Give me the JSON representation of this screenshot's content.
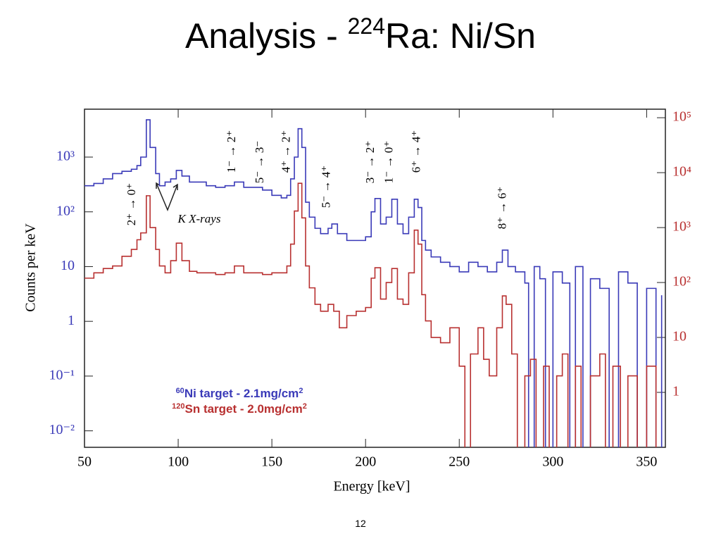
{
  "chart_data": {
    "type": "line",
    "title": {
      "text": "Analysis - ",
      "superscript": "224",
      "rest": "Ra: Ni/Sn"
    },
    "x_label": "Energy [keV]",
    "y_label": "Counts per keV",
    "log_y": true,
    "xlim": [
      50,
      360
    ],
    "xticks": [
      50,
      100,
      150,
      200,
      250,
      300,
      350
    ],
    "ylim": [
      0.005,
      7500
    ],
    "yticks": [
      {
        "value": 0.01,
        "label": "10⁻²"
      },
      {
        "value": 0.1,
        "label": "10⁻¹"
      },
      1,
      10,
      {
        "value": 100,
        "label": "10²"
      },
      {
        "value": 1000,
        "label": "10³"
      }
    ],
    "y2lim": [
      0.1,
      143000
    ],
    "y2ticks": [
      1,
      10,
      {
        "value": 100,
        "label": "10²"
      },
      {
        "value": 1000,
        "label": "10³"
      },
      {
        "value": 10000,
        "label": "10⁴"
      },
      {
        "value": 100000,
        "label": "10⁵"
      }
    ],
    "series": [
      {
        "name_sup": "60",
        "name": "Ni target - 2.1mg/cm",
        "name_unit_sup": "2",
        "color": "#3a3ab8",
        "axis": "y",
        "x": [
          50,
          55,
          60,
          65,
          70,
          75,
          78,
          80,
          83,
          85,
          88,
          90,
          93,
          96,
          99,
          102,
          106,
          110,
          115,
          120,
          125,
          130,
          135,
          140,
          145,
          150,
          155,
          158,
          160,
          162,
          164,
          166,
          168,
          170,
          173,
          176,
          180,
          182,
          185,
          190,
          195,
          200,
          203,
          205,
          208,
          211,
          214,
          217,
          220,
          223,
          226,
          228,
          230,
          232,
          235,
          240,
          245,
          250,
          255,
          260,
          265,
          270,
          273,
          276,
          280,
          285,
          287,
          290,
          293,
          296,
          300,
          305,
          309,
          312,
          316,
          320,
          325,
          330,
          335,
          340,
          345,
          350,
          355,
          358
        ],
        "values": [
          300,
          330,
          400,
          500,
          550,
          600,
          700,
          1000,
          4800,
          1500,
          500,
          300,
          350,
          400,
          570,
          450,
          350,
          350,
          300,
          280,
          300,
          350,
          280,
          280,
          250,
          200,
          180,
          200,
          400,
          1000,
          3300,
          1500,
          150,
          80,
          50,
          40,
          50,
          60,
          40,
          30,
          30,
          35,
          100,
          175,
          60,
          80,
          170,
          60,
          40,
          80,
          170,
          120,
          30,
          20,
          15,
          12,
          10,
          8,
          12,
          10,
          8,
          12,
          20,
          10,
          8,
          5,
          0.001,
          10,
          6,
          0.001,
          8,
          5,
          0.001,
          10,
          0.001,
          6,
          4,
          0.001,
          8,
          5,
          0.001,
          4,
          0.001,
          3
        ]
      },
      {
        "name_sup": "120",
        "name": "Sn target - 2.0mg/cm",
        "name_unit_sup": "2",
        "color": "#b83030",
        "axis": "y2",
        "x": [
          50,
          55,
          60,
          65,
          70,
          75,
          78,
          80,
          83,
          85,
          88,
          90,
          93,
          96,
          99,
          102,
          106,
          110,
          115,
          120,
          125,
          130,
          135,
          140,
          145,
          150,
          155,
          158,
          160,
          162,
          164,
          166,
          168,
          170,
          173,
          176,
          180,
          183,
          186,
          190,
          195,
          200,
          203,
          205,
          208,
          211,
          214,
          217,
          220,
          223,
          226,
          228,
          230,
          232,
          235,
          240,
          245,
          250,
          253,
          256,
          260,
          263,
          266,
          270,
          273,
          275,
          278,
          281,
          285,
          288,
          291,
          295,
          298,
          302,
          305,
          308,
          312,
          315,
          320,
          325,
          328,
          332,
          336,
          340,
          345,
          350,
          355
        ],
        "values": [
          120,
          150,
          180,
          200,
          300,
          400,
          600,
          800,
          3800,
          1000,
          400,
          200,
          150,
          250,
          520,
          250,
          160,
          150,
          150,
          140,
          150,
          200,
          150,
          150,
          140,
          150,
          150,
          200,
          500,
          2000,
          6400,
          1500,
          200,
          80,
          40,
          30,
          40,
          30,
          15,
          25,
          30,
          35,
          120,
          186,
          50,
          100,
          180,
          50,
          40,
          150,
          900,
          500,
          60,
          20,
          10,
          8,
          15,
          3,
          0.01,
          5,
          15,
          4,
          2,
          15,
          57,
          40,
          5,
          0.01,
          2,
          4,
          0.01,
          3,
          0.01,
          2,
          5,
          0.01,
          3,
          0.01,
          2,
          5,
          0.01,
          3,
          0.01,
          2,
          0.01,
          3,
          0.01
        ]
      }
    ],
    "annotations": [
      {
        "text": "2⁺ → 0⁺",
        "x": 75.5
      },
      {
        "text": "1⁻ → 2⁺",
        "x": 128.9
      },
      {
        "text": "5⁻ → 3⁻",
        "x": 143.9
      },
      {
        "text": "4⁺ → 2⁺",
        "x": 158
      },
      {
        "text": "5⁻ → 4⁺",
        "x": 179.5
      },
      {
        "text": "3⁻ → 2⁺",
        "x": 203
      },
      {
        "text": "1⁻ → 0⁺",
        "x": 213
      },
      {
        "text": "6⁺ → 4⁺",
        "x": 227.6
      },
      {
        "text": "8⁺ → 6⁺",
        "x": 273.4
      }
    ],
    "xray_label": "K X-rays",
    "page_number": "12"
  }
}
